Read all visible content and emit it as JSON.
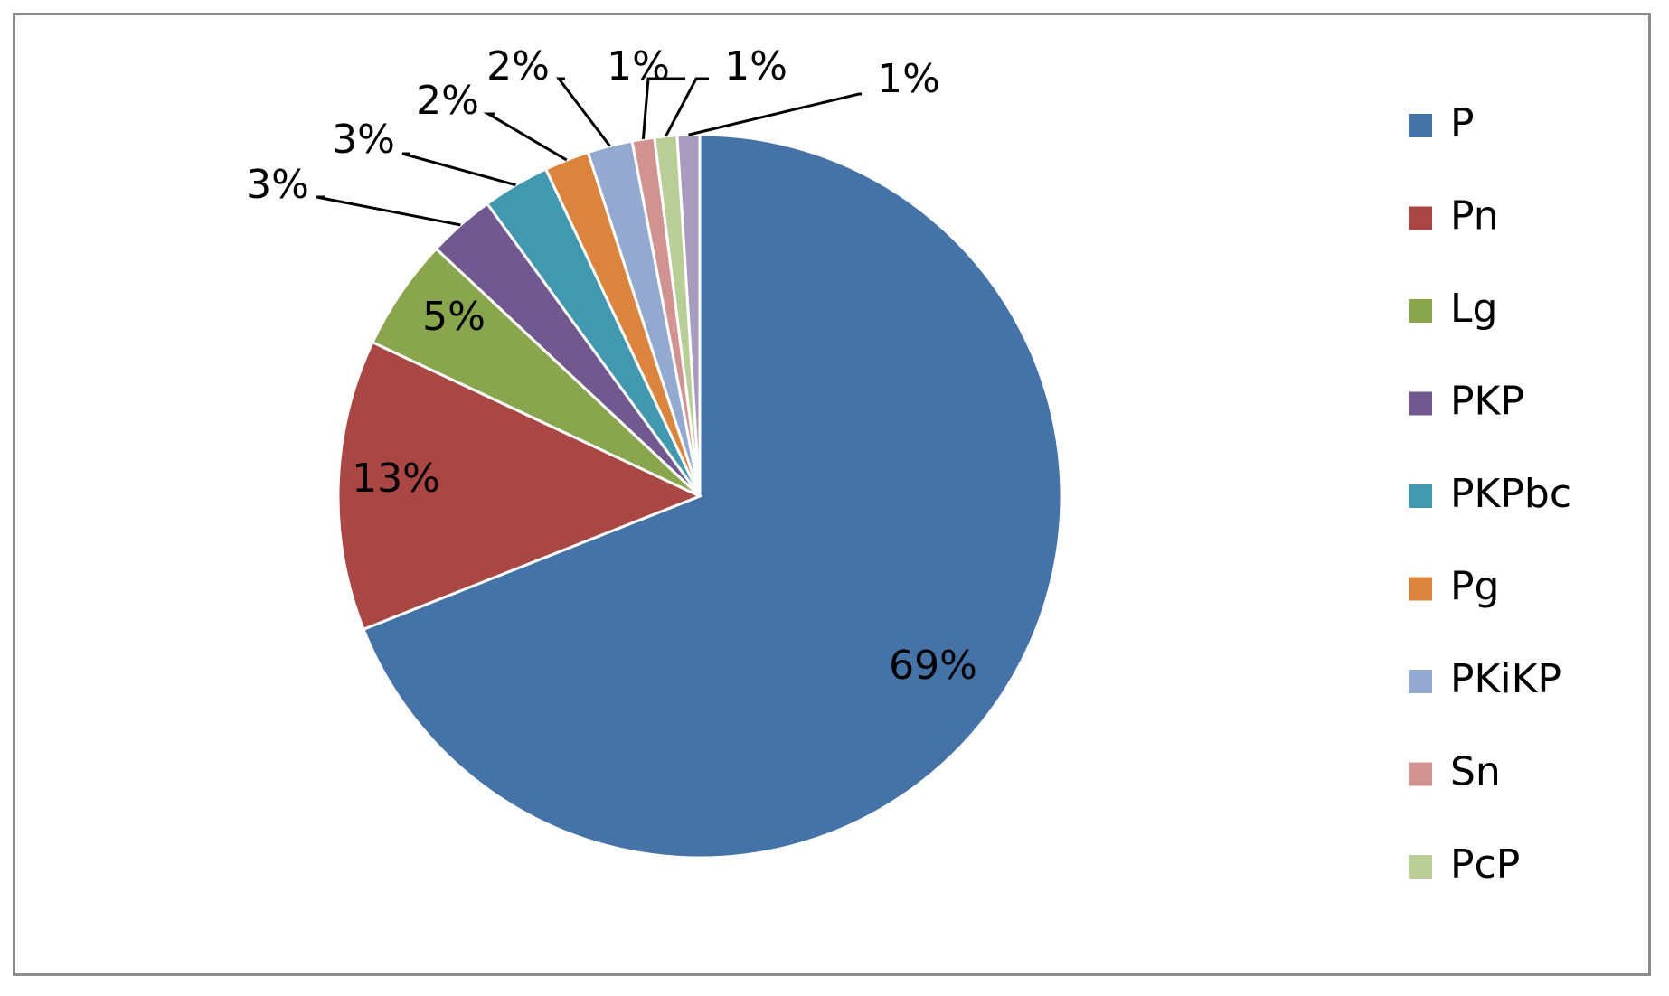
{
  "chart_data": {
    "type": "pie",
    "title": "",
    "categories": [
      "P",
      "Pn",
      "Lg",
      "PKP",
      "PKPbc",
      "Pg",
      "PKiKP",
      "Sn",
      "PcP",
      ""
    ],
    "values": [
      69,
      13,
      5,
      3,
      3,
      2,
      2,
      1,
      1,
      1
    ],
    "labels": [
      "69%",
      "13%",
      "5%",
      "3%",
      "3%",
      "2%",
      "2%",
      "1%",
      "1%",
      "1%"
    ],
    "colors": [
      "#4572A7",
      "#AA4643",
      "#89A54E",
      "#71588F",
      "#4198AF",
      "#DB843D",
      "#93A9CF",
      "#D19392",
      "#B9CD96",
      "#A99BBD"
    ],
    "legend": {
      "position": "right",
      "entries": [
        "P",
        "Pn",
        "Lg",
        "PKP",
        "PKPbc",
        "Pg",
        "PKiKP",
        "Sn",
        "PcP"
      ]
    },
    "start_angle": "12 o'clock",
    "direction": "clockwise"
  }
}
